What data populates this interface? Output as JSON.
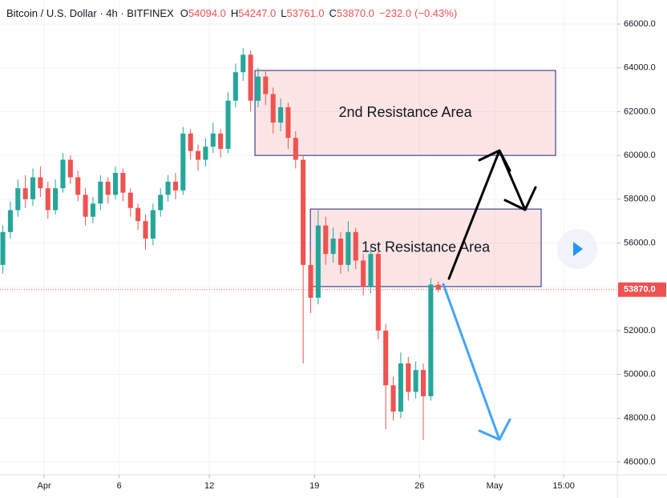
{
  "chart_data": {
    "type": "candlestick",
    "title": "Bitcoin / U.S. Dollar · 4h · BITFINEX",
    "header_values": [
      {
        "prefix": "O",
        "value": 54094,
        "label": "54094.0"
      },
      {
        "prefix": "H",
        "value": 54247,
        "label": "54247.0"
      },
      {
        "prefix": "L",
        "value": 53761,
        "label": "53761.0"
      },
      {
        "prefix": "C",
        "value": 53870,
        "label": "53870.0"
      }
    ],
    "change": {
      "value": -232,
      "label": "−232.0"
    },
    "change_pct": {
      "value": -0.43,
      "label": "(−0.43%)"
    },
    "last_price": {
      "value": 53870,
      "label": "53870.0"
    },
    "up_color": "#26a69a",
    "down_color": "#ef5350",
    "x": [
      -2.75,
      -2.25,
      -1.75,
      -1.25,
      -0.75,
      -0.25,
      0.25,
      0.75,
      1.25,
      1.75,
      2.25,
      2.75,
      3.25,
      3.75,
      4.25,
      4.75,
      5.25,
      5.75,
      6.25,
      6.75,
      7.25,
      7.75,
      8.25,
      8.75,
      9.25,
      9.75,
      10.25,
      10.75,
      11.25,
      11.75,
      12.25,
      12.75,
      13.25,
      13.75,
      14.25,
      14.75,
      15.25,
      15.75,
      16.25,
      16.75,
      17.25,
      17.75,
      18.25,
      18.75,
      19.25,
      19.75,
      20.25,
      20.75,
      21.25,
      21.75,
      22.25,
      22.75,
      23.25,
      23.75,
      24.25,
      24.75,
      25.25,
      25.75,
      26.25
    ],
    "open": [
      55000,
      56500,
      57500,
      58500,
      58000,
      59000,
      58500,
      57500,
      58500,
      59800,
      59000,
      58200,
      57200,
      57800,
      58800,
      58200,
      59200,
      58300,
      57600,
      57000,
      56200,
      57500,
      58200,
      58800,
      58400,
      61000,
      60200,
      59800,
      60400,
      61000,
      60300,
      62500,
      63800,
      64600,
      62500,
      63600,
      62800,
      61500,
      62200,
      60800,
      59800,
      55000,
      53500,
      56800,
      55500,
      56200,
      55000,
      56500,
      55200,
      54000,
      55500,
      52000,
      49500,
      48300,
      50500,
      49200,
      50200,
      49000,
      54094
    ],
    "high": [
      56800,
      57900,
      58900,
      59100,
      59400,
      59500,
      58800,
      58900,
      60100,
      60000,
      59300,
      58500,
      58100,
      59100,
      59000,
      59500,
      59400,
      58500,
      57800,
      57300,
      57800,
      58500,
      59100,
      59200,
      61300,
      61200,
      60500,
      60800,
      61500,
      61200,
      62900,
      64200,
      64900,
      64800,
      64000,
      63900,
      63100,
      62600,
      62400,
      61100,
      60000,
      55600,
      57500,
      57200,
      56700,
      56500,
      57000,
      56700,
      55500,
      55800,
      55700,
      52300,
      49900,
      51000,
      50800,
      50600,
      50500,
      54400,
      54247
    ],
    "low": [
      54600,
      56200,
      57200,
      57600,
      57700,
      58100,
      57100,
      57300,
      58300,
      58700,
      57900,
      56800,
      56900,
      57500,
      57800,
      58000,
      57900,
      57200,
      56600,
      55700,
      55900,
      57200,
      57900,
      58000,
      58200,
      59800,
      59300,
      59500,
      60100,
      59900,
      60100,
      62200,
      63400,
      62000,
      62200,
      62300,
      61000,
      61100,
      60300,
      59400,
      50500,
      52800,
      53200,
      55000,
      55100,
      54600,
      54700,
      54800,
      53600,
      53700,
      51600,
      47500,
      47900,
      48000,
      48800,
      48900,
      47000,
      48800,
      53761
    ],
    "close": [
      56500,
      57500,
      58500,
      58000,
      59000,
      58500,
      57500,
      58500,
      59800,
      59000,
      58200,
      57200,
      57800,
      58800,
      58200,
      59200,
      58300,
      57600,
      57000,
      56200,
      57500,
      58200,
      58800,
      58400,
      61000,
      60200,
      59800,
      60400,
      61000,
      60300,
      62500,
      63800,
      64600,
      62500,
      63600,
      62800,
      61500,
      62200,
      60800,
      59800,
      55000,
      53500,
      56800,
      55500,
      56200,
      55000,
      56500,
      55200,
      54000,
      55500,
      52000,
      49500,
      48300,
      50500,
      49200,
      50200,
      49000,
      54102,
      53870
    ],
    "xlim": [
      -2.94,
      38.17
    ],
    "xticks": [
      {
        "value": 0,
        "label": "Apr"
      },
      {
        "value": 5,
        "label": "6"
      },
      {
        "value": 11,
        "label": "12"
      },
      {
        "value": 18,
        "label": "19"
      },
      {
        "value": 25,
        "label": "26"
      },
      {
        "value": 30,
        "label": "May"
      },
      {
        "value": 34.6,
        "label": "15:00"
      }
    ],
    "ylim": [
      45415,
      67097
    ],
    "yticks": [
      {
        "value": 46000,
        "label": "46000.0"
      },
      {
        "value": 48000,
        "label": "48000.0"
      },
      {
        "value": 50000,
        "label": "50000.0"
      },
      {
        "value": 52000,
        "label": "52000.0"
      },
      {
        "value": 54000,
        "label": "54000.0"
      },
      {
        "value": 56000,
        "label": "56000.0"
      },
      {
        "value": 58000,
        "label": "58000.0"
      },
      {
        "value": 60000,
        "label": "60000.0"
      },
      {
        "value": 62000,
        "label": "62000.0"
      },
      {
        "value": 64000,
        "label": "64000.0"
      },
      {
        "value": 66000,
        "label": "66000.0"
      }
    ],
    "grid": true,
    "zones": [
      {
        "label": "2nd Resistance Area",
        "x": [
          14.04,
          34.06
        ],
        "y": [
          60000,
          63880
        ]
      },
      {
        "label": "1st Resistance Area",
        "x": [
          17.73,
          33.1
        ],
        "y": [
          54010,
          57550
        ]
      }
    ]
  }
}
